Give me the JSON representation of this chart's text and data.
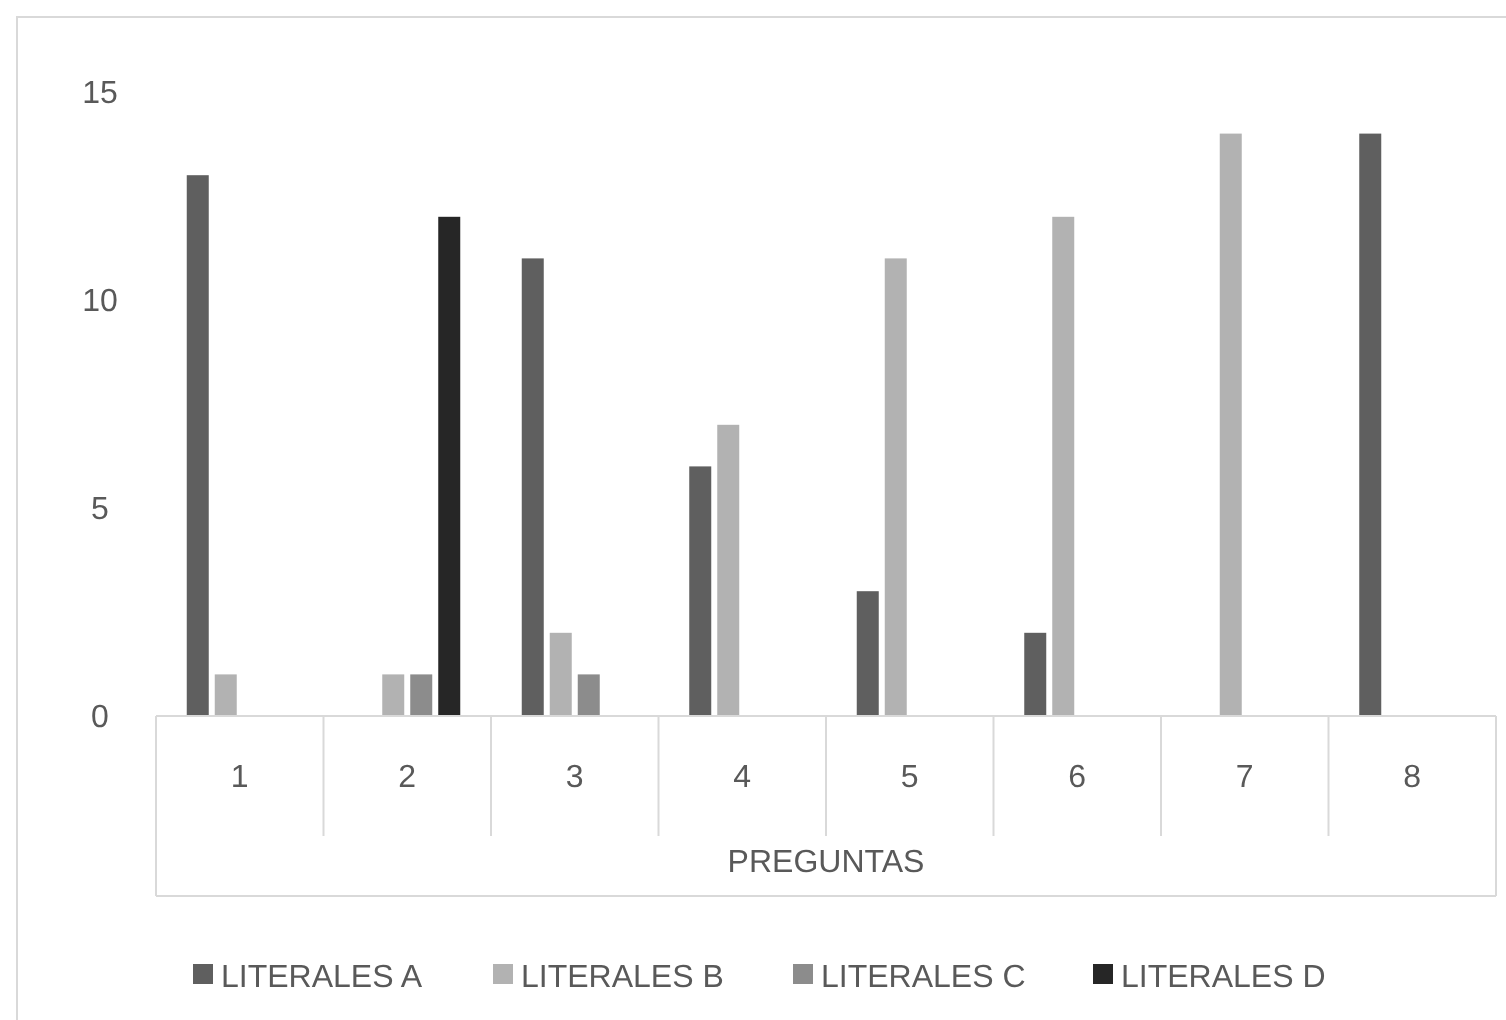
{
  "chart_data": {
    "type": "bar",
    "xlabel": "PREGUNTAS",
    "categories": [
      "1",
      "2",
      "3",
      "4",
      "5",
      "6",
      "7",
      "8"
    ],
    "series": [
      {
        "name": "LITERALES A",
        "color": "#5f5f5f",
        "values": [
          13,
          0,
          11,
          6,
          3,
          2,
          0,
          14
        ]
      },
      {
        "name": "LITERALES B",
        "color": "#b2b2b2",
        "values": [
          1,
          1,
          2,
          7,
          11,
          12,
          14,
          0
        ]
      },
      {
        "name": "LITERALES C",
        "color": "#8c8c8c",
        "values": [
          0,
          1,
          1,
          0,
          0,
          0,
          0,
          0
        ]
      },
      {
        "name": "LITERALES D",
        "color": "#262626",
        "values": [
          0,
          12,
          0,
          0,
          0,
          0,
          0,
          0
        ]
      }
    ],
    "ylim": [
      0,
      15
    ],
    "yticks": [
      0,
      5,
      10,
      15
    ],
    "grid": false,
    "legend": "bottom"
  }
}
